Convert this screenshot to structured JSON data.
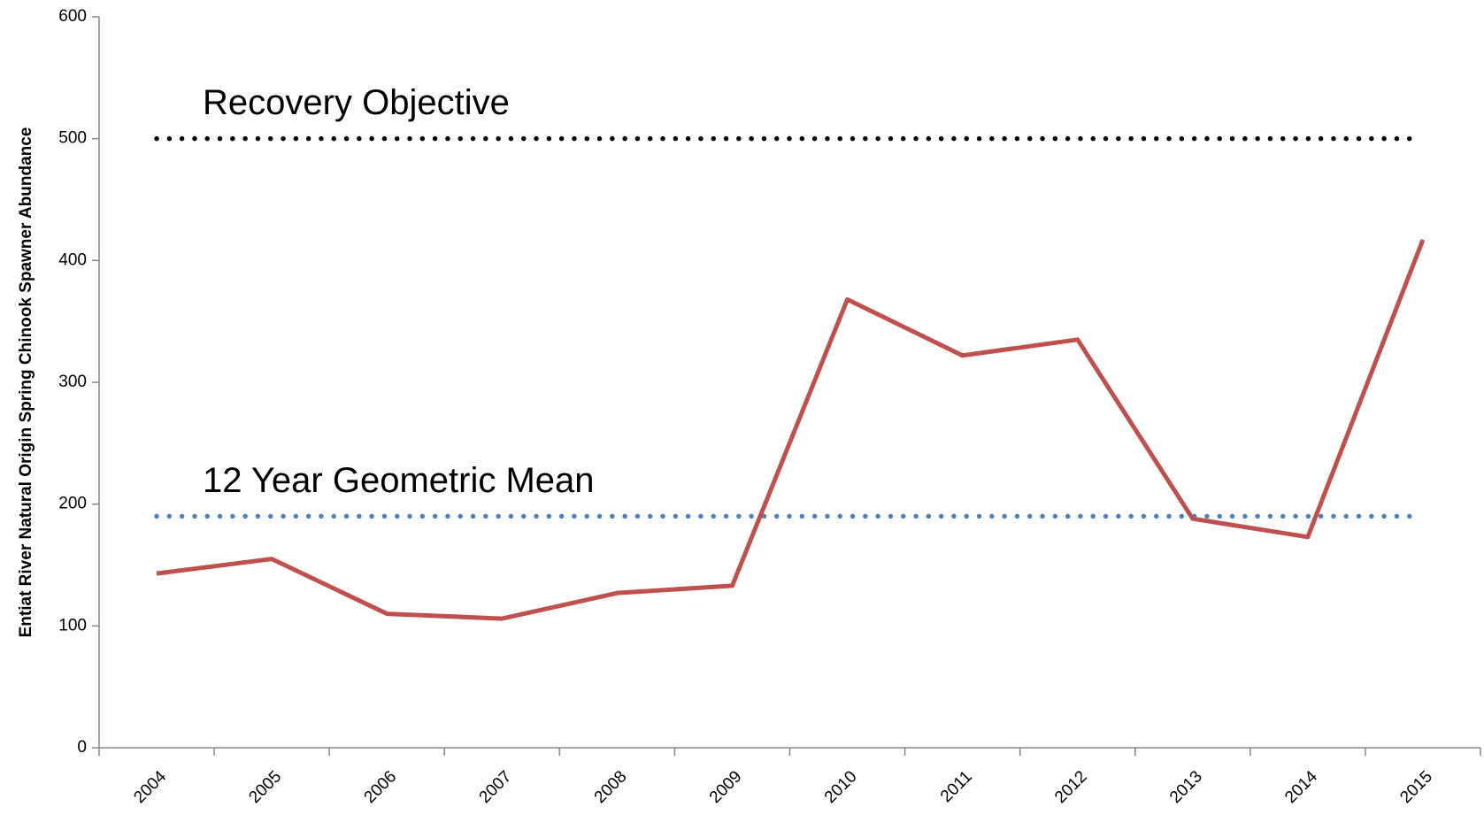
{
  "chart_data": {
    "type": "line",
    "y_label": "Entiat River Natural Origin Spring Chinook Spawner Abundance",
    "categories": [
      "2004",
      "2005",
      "2006",
      "2007",
      "2008",
      "2009",
      "2010",
      "2011",
      "2012",
      "2013",
      "2014",
      "2015"
    ],
    "series": [
      {
        "color": "#c0504d",
        "values": [
          143,
          155,
          110,
          106,
          127,
          133,
          368,
          322,
          335,
          188,
          173,
          417
        ]
      }
    ],
    "reference_lines": [
      {
        "label": "Recovery Objective",
        "value": 500,
        "color": "#000000"
      },
      {
        "label": "12 Year Geometric Mean",
        "value": 190,
        "color": "#4f81bd"
      }
    ],
    "ylim": [
      0,
      600
    ],
    "yticks": [
      0,
      100,
      200,
      300,
      400,
      500,
      600
    ],
    "grid": false
  }
}
